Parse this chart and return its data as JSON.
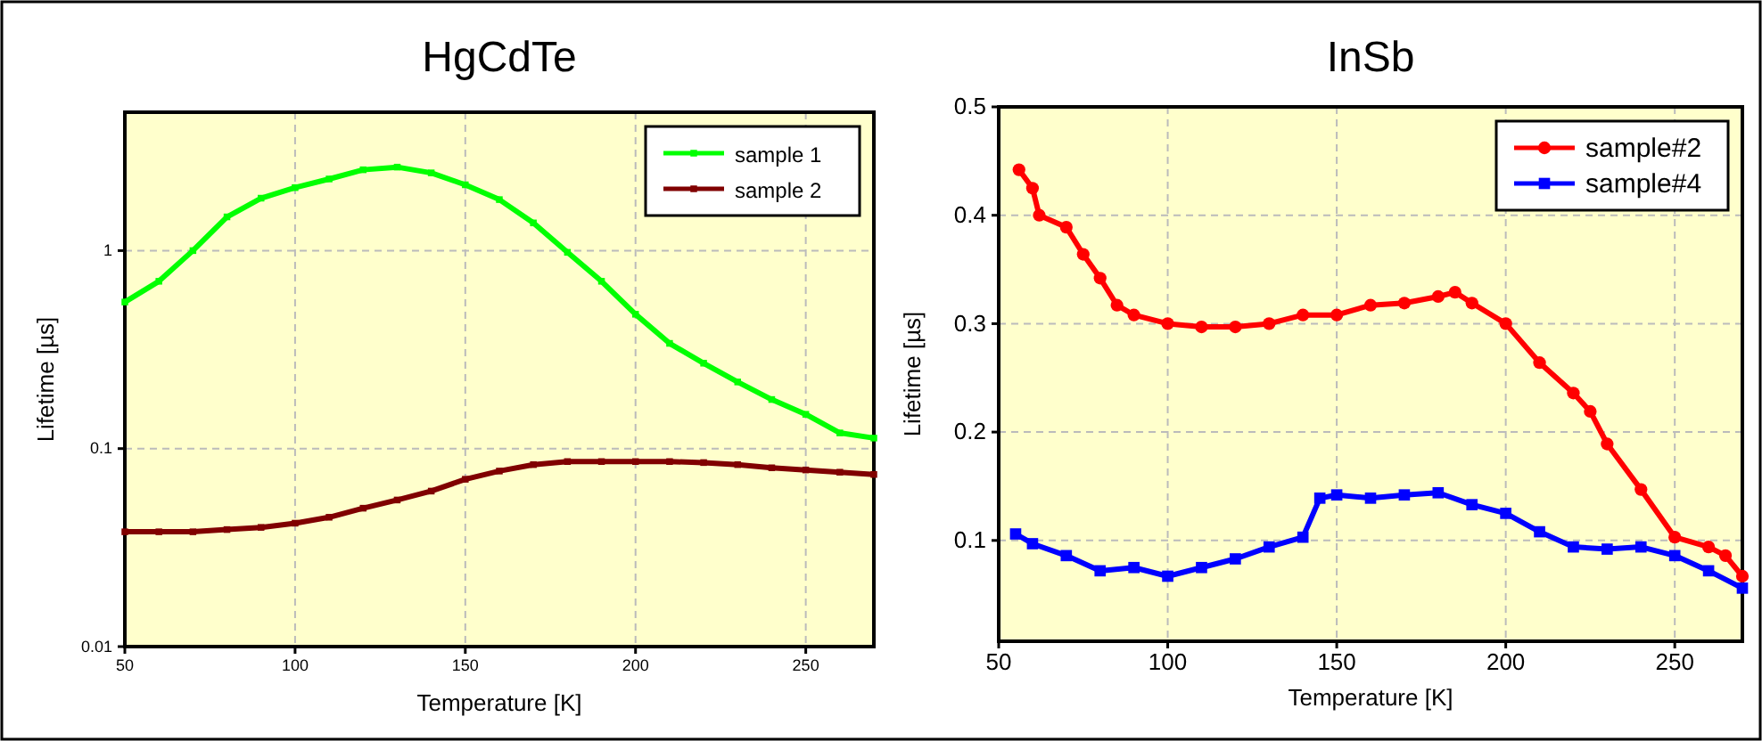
{
  "chart_data": [
    {
      "type": "line",
      "title": "HgCdTe",
      "xlabel": "Temperature [K]",
      "ylabel": "Lifetime [µs]",
      "log": "y",
      "xlim": [
        50,
        270
      ],
      "xticks": [
        50,
        100,
        150,
        200,
        250
      ],
      "ylim": [
        0.01,
        5
      ],
      "yticks": [
        0.01,
        0.1,
        1
      ],
      "grid": true,
      "legend": "top right",
      "marker": "square",
      "line_style": "solid",
      "x": [
        50,
        60,
        70,
        80,
        90,
        100,
        110,
        120,
        130,
        140,
        150,
        160,
        170,
        180,
        190,
        200,
        210,
        220,
        230,
        240,
        250,
        260,
        270
      ],
      "series": [
        {
          "name": "sample 1",
          "color": "#00ff00",
          "values": [
            0.55,
            0.7,
            1.0,
            1.48,
            1.84,
            2.08,
            2.3,
            2.56,
            2.64,
            2.47,
            2.15,
            1.81,
            1.38,
            0.98,
            0.7,
            0.477,
            0.34,
            0.27,
            0.217,
            0.177,
            0.149,
            0.12,
            0.113
          ]
        },
        {
          "name": "sample 2",
          "color": "#800000",
          "values": [
            0.038,
            0.038,
            0.038,
            0.039,
            0.04,
            0.042,
            0.045,
            0.05,
            0.055,
            0.061,
            0.07,
            0.077,
            0.083,
            0.086,
            0.086,
            0.086,
            0.086,
            0.085,
            0.083,
            0.08,
            0.078,
            0.076,
            0.074
          ]
        }
      ]
    },
    {
      "type": "line",
      "title": "InSb",
      "xlabel": "Temperature [K]",
      "ylabel": "Lifetime [µs]",
      "xlim": [
        50,
        270
      ],
      "xticks": [
        50,
        100,
        150,
        200,
        250
      ],
      "ylim": [
        0.007,
        0.5
      ],
      "yticks": [
        0.1,
        0.2,
        0.3,
        0.4,
        0.5
      ],
      "grid": true,
      "legend": "top right",
      "line_style": "solid",
      "series": [
        {
          "name": "sample#2",
          "color": "#ff0000",
          "marker": "circle",
          "x": [
            56,
            60,
            62,
            70,
            75,
            80,
            85,
            90,
            100,
            110,
            120,
            130,
            140,
            150,
            160,
            170,
            180,
            185,
            190,
            200,
            210,
            220,
            225,
            230,
            240,
            250,
            260,
            265,
            270
          ],
          "values": [
            0.442,
            0.425,
            0.4,
            0.389,
            0.364,
            0.342,
            0.317,
            0.308,
            0.3,
            0.297,
            0.297,
            0.3,
            0.308,
            0.308,
            0.317,
            0.319,
            0.325,
            0.329,
            0.319,
            0.3,
            0.264,
            0.236,
            0.219,
            0.189,
            0.147,
            0.103,
            0.094,
            0.086,
            0.067
          ]
        },
        {
          "name": "sample#4",
          "color": "#0000ff",
          "marker": "square",
          "x": [
            55,
            60,
            70,
            80,
            90,
            100,
            110,
            120,
            130,
            140,
            145,
            150,
            160,
            170,
            180,
            190,
            200,
            210,
            220,
            230,
            240,
            250,
            260,
            270
          ],
          "values": [
            0.106,
            0.097,
            0.086,
            0.072,
            0.075,
            0.067,
            0.075,
            0.083,
            0.094,
            0.103,
            0.139,
            0.142,
            0.139,
            0.142,
            0.144,
            0.133,
            0.125,
            0.108,
            0.094,
            0.092,
            0.094,
            0.086,
            0.072,
            0.056
          ]
        }
      ]
    }
  ]
}
